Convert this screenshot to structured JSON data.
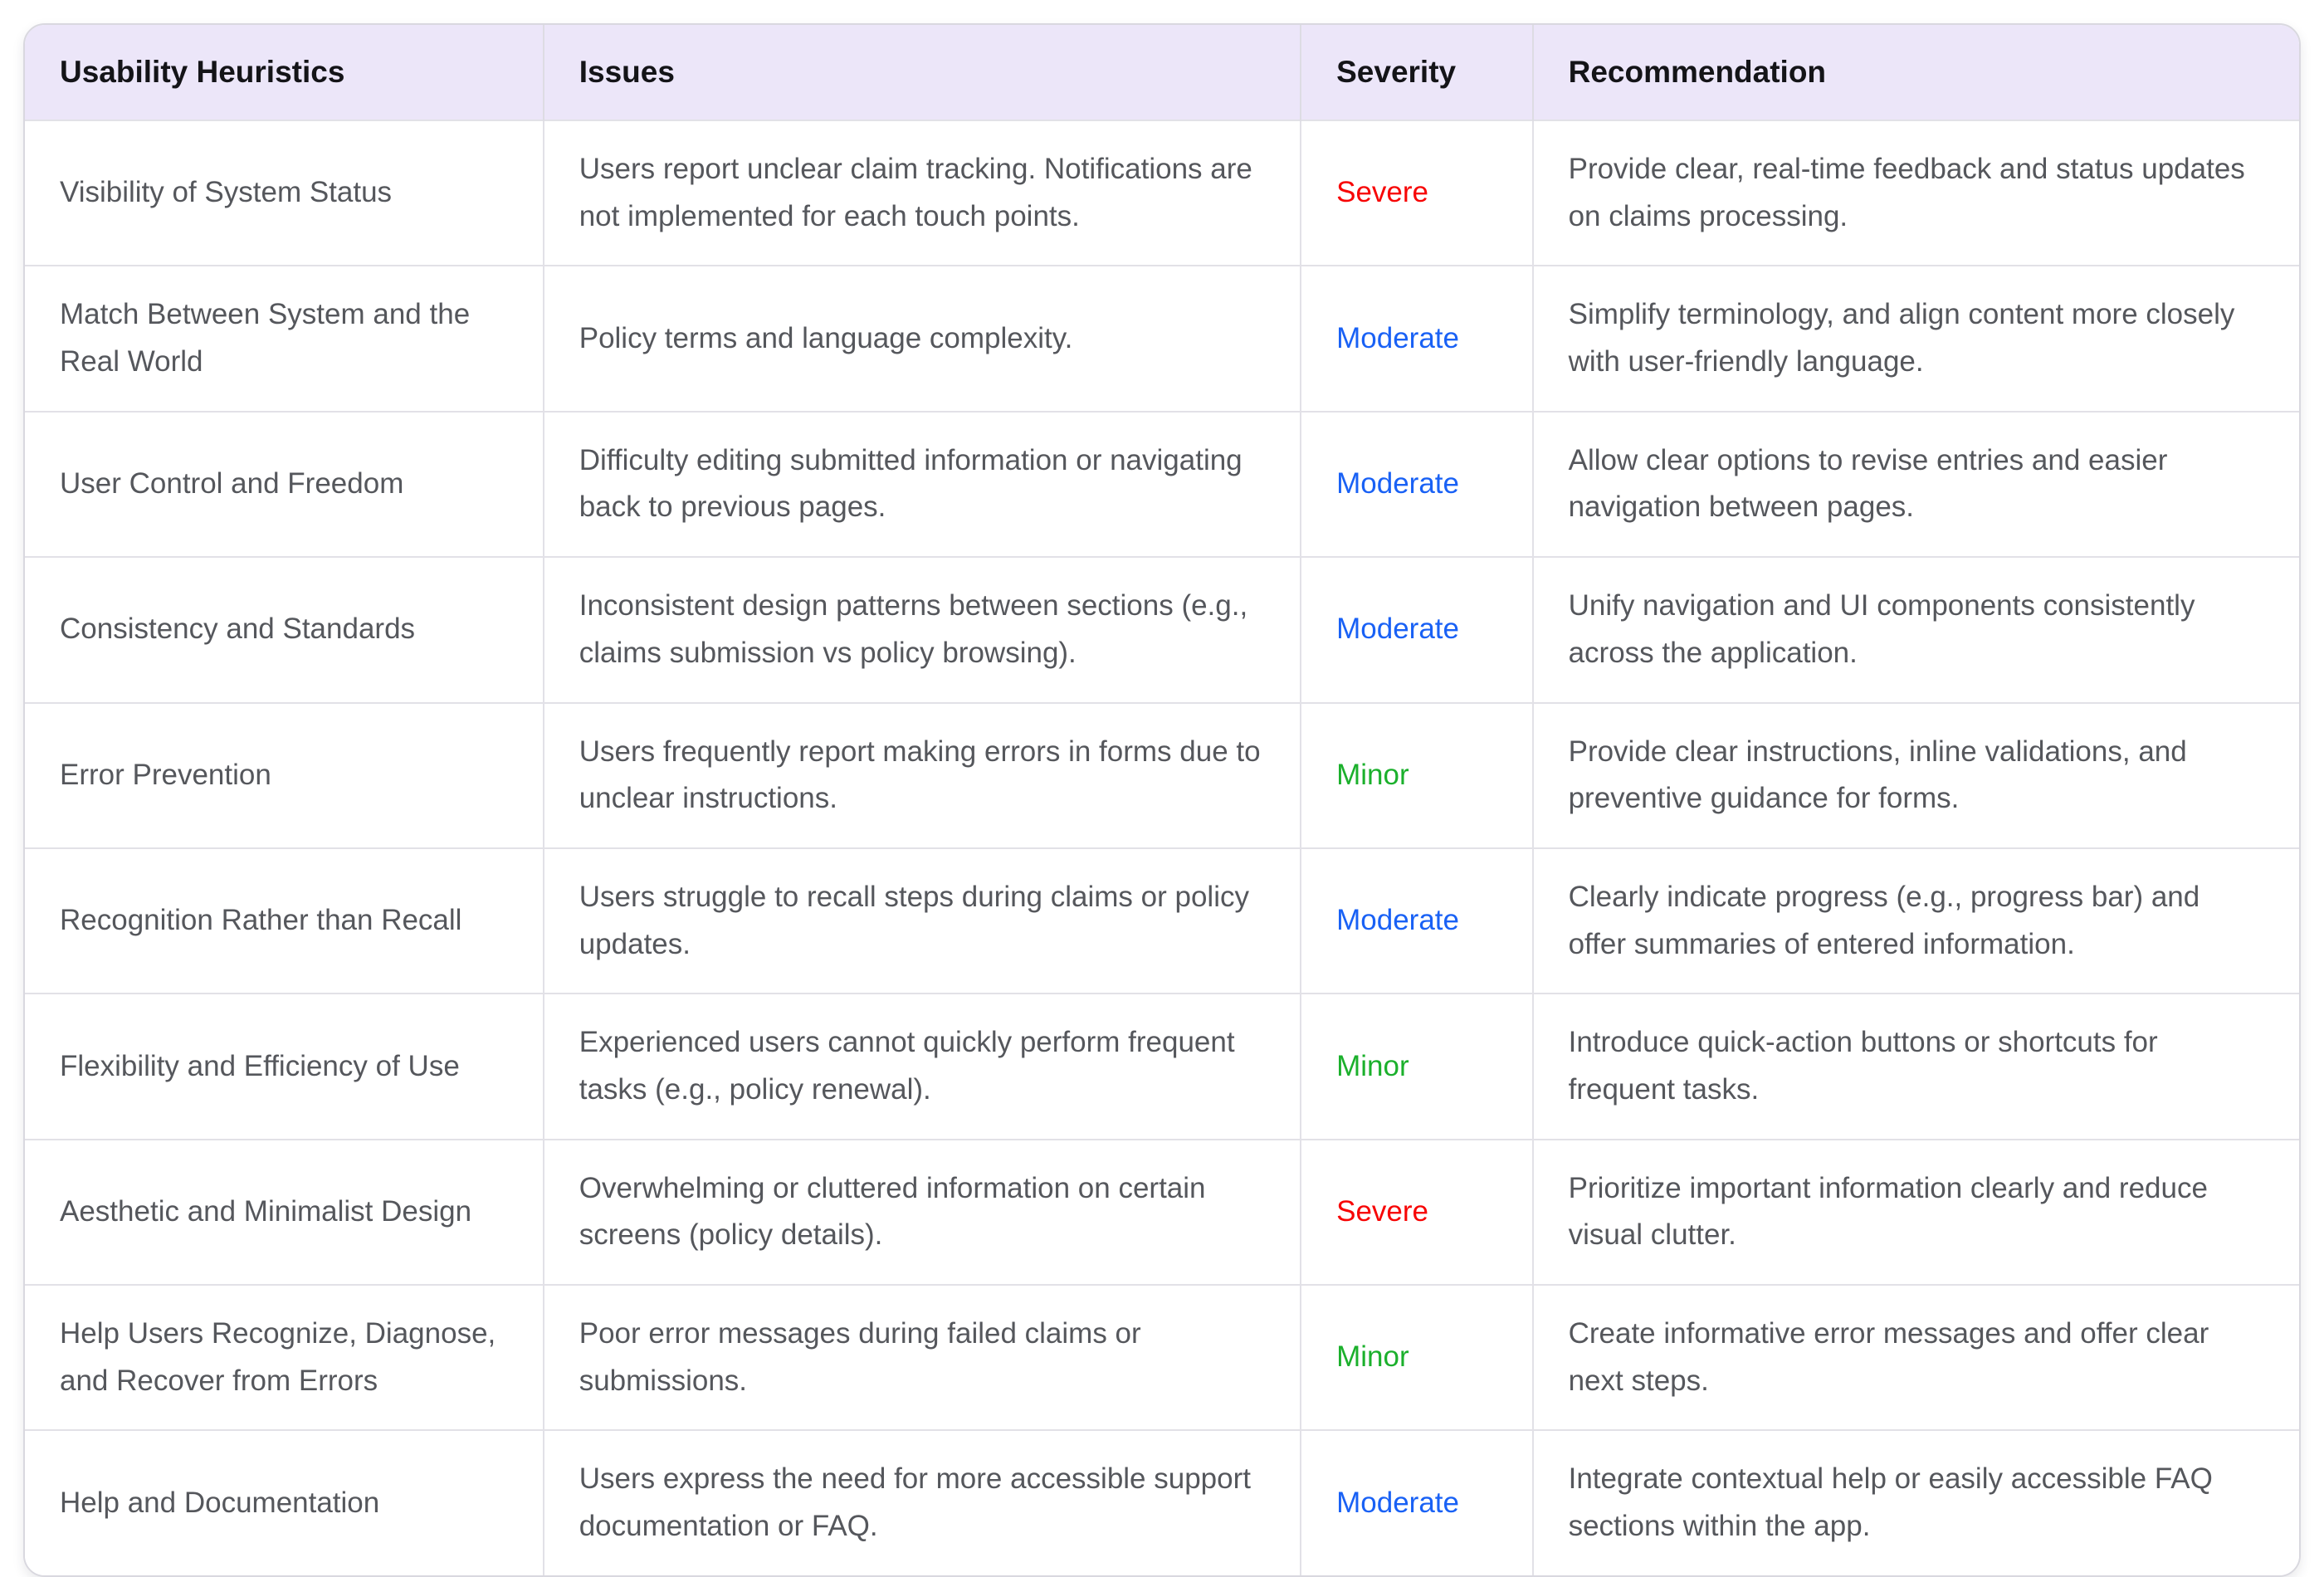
{
  "table": {
    "columns": [
      "Usability Heuristics",
      "Issues",
      "Severity",
      "Recommendation"
    ],
    "rows": [
      {
        "heuristic": "Visibility of System Status",
        "issue": "Users report unclear claim tracking. Notifications are not implemented for each touch points.",
        "severity": "Severe",
        "recommendation": "Provide clear, real-time feedback and status updates on claims processing."
      },
      {
        "heuristic": "Match Between System and the Real World",
        "issue": "Policy terms and language complexity.",
        "severity": "Moderate",
        "recommendation": "Simplify terminology, and align content more closely with user-friendly language."
      },
      {
        "heuristic": "User Control and Freedom",
        "issue": "Difficulty editing submitted information or navigating back to previous pages.",
        "severity": "Moderate",
        "recommendation": "Allow clear options to revise entries and easier navigation between pages."
      },
      {
        "heuristic": "Consistency and Standards",
        "issue": "Inconsistent design patterns between sections (e.g., claims submission vs policy browsing).",
        "severity": "Moderate",
        "recommendation": "Unify navigation and UI components consistently across the application."
      },
      {
        "heuristic": "Error Prevention",
        "issue": "Users frequently report making errors in forms due to unclear instructions.",
        "severity": "Minor",
        "recommendation": "Provide clear instructions, inline validations, and preventive guidance for forms."
      },
      {
        "heuristic": "Recognition Rather than Recall",
        "issue": "Users struggle to recall steps during claims or policy updates.",
        "severity": "Moderate",
        "recommendation": "Clearly indicate progress (e.g., progress bar) and offer summaries of entered information."
      },
      {
        "heuristic": "Flexibility and Efficiency of Use",
        "issue": "Experienced users cannot quickly perform frequent tasks (e.g., policy renewal).",
        "severity": "Minor",
        "recommendation": "Introduce quick-action buttons or shortcuts for frequent tasks."
      },
      {
        "heuristic": "Aesthetic and Minimalist Design",
        "issue": "Overwhelming or cluttered information on certain screens (policy details).",
        "severity": "Severe",
        "recommendation": "Prioritize important information clearly and reduce visual clutter."
      },
      {
        "heuristic": "Help Users Recognize, Diagnose, and Recover from Errors",
        "issue": "Poor error messages during failed claims or submissions.",
        "severity": "Minor",
        "recommendation": "Create informative error messages and offer clear next steps."
      },
      {
        "heuristic": "Help and Documentation",
        "issue": "Users express the need for more accessible support documentation or FAQ.",
        "severity": "Moderate",
        "recommendation": "Integrate contextual help or easily accessible FAQ sections within the app."
      }
    ]
  },
  "severity_colors": {
    "severe": "#f70505",
    "moderate": "#1961f5",
    "minor": "#1bb02c"
  },
  "header_bg": "#ece6f9"
}
